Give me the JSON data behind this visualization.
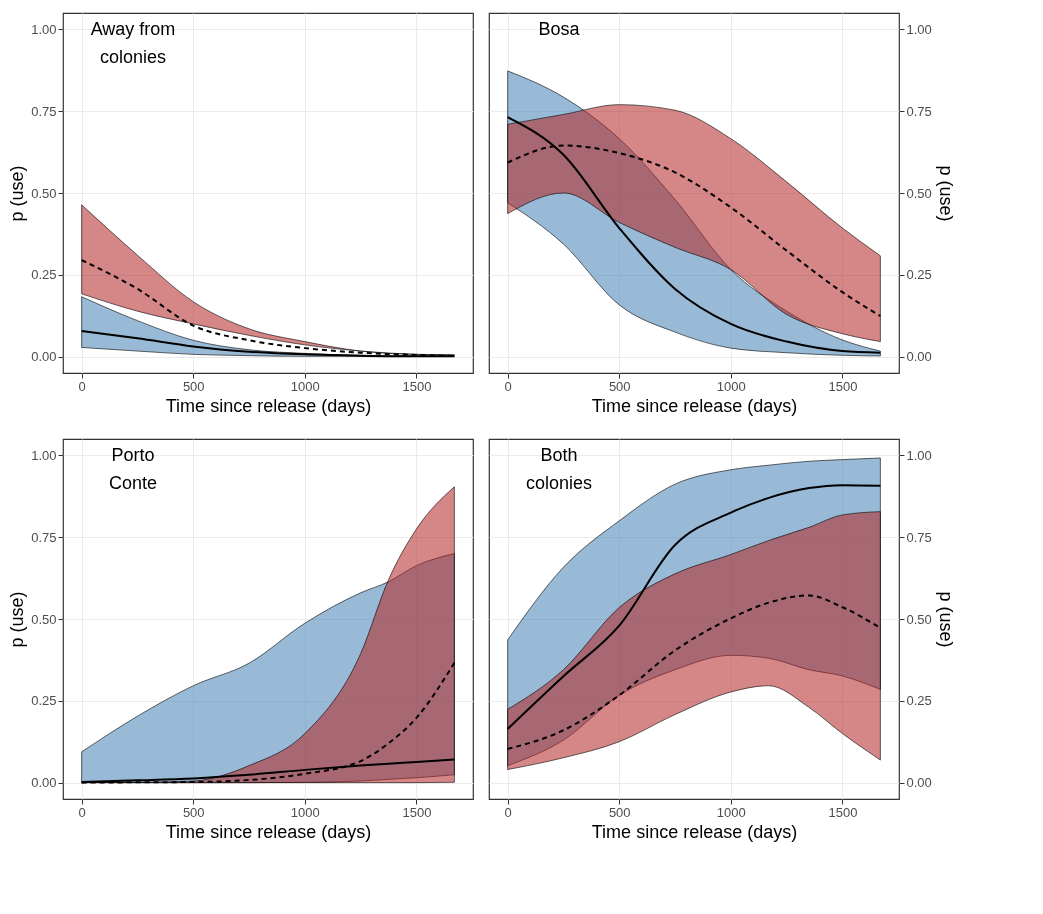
{
  "chart_data": [
    {
      "type": "line",
      "colors": [
        "#4682b4",
        "#b22222"
      ],
      "xlabel": "Time since release (days)",
      "ylabel": "p (use)",
      "annotations": [
        "Away from\ncolonies"
      ],
      "x": [
        0,
        250,
        500,
        750,
        1000,
        1250,
        1500,
        1670
      ],
      "xlim": [
        -83.5,
        1753.5
      ],
      "ylim": [
        -0.05,
        1.05
      ],
      "xticks": [
        0,
        500,
        1000,
        1500
      ],
      "yticks": [
        {
          "value": 0,
          "label": "0.00"
        },
        {
          "value": 0.25,
          "label": "0.25"
        },
        {
          "value": 0.5,
          "label": "0.50"
        },
        {
          "value": 0.75,
          "label": "0.75"
        },
        {
          "value": 1,
          "label": "1.00"
        }
      ],
      "grid": true,
      "marker": "none",
      "series": [
        {
          "color": "#000000",
          "line_style": "solid",
          "values": [
            0.078,
            0.056,
            0.031,
            0.015,
            0.007,
            0.003,
            0.001,
            0.001
          ],
          "lower": [
            0.028,
            0.017,
            0.007,
            0.003,
            0.001,
            0.001,
            0.001,
            0.001
          ],
          "upper": [
            0.183,
            0.11,
            0.05,
            0.021,
            0.01,
            0.004,
            0.002,
            0.002
          ]
        },
        {
          "color": "#000000",
          "line_style": "dashed",
          "values": [
            0.295,
            0.207,
            0.095,
            0.05,
            0.026,
            0.012,
            0.005,
            0.002
          ],
          "lower": [
            0.192,
            0.139,
            0.1,
            0.065,
            0.036,
            0.017,
            0.007,
            0.004
          ],
          "upper": [
            0.464,
            0.31,
            0.168,
            0.085,
            0.046,
            0.017,
            0.007,
            0.006
          ]
        }
      ]
    },
    {
      "type": "line",
      "colors": [
        "#4682b4",
        "#b22222"
      ],
      "xlabel": "Time since release (days)",
      "ylabel": "p (use)",
      "annotations": [
        "Bosa"
      ],
      "x": [
        0,
        250,
        500,
        750,
        1000,
        1250,
        1500,
        1670
      ],
      "xlim": [
        -83.5,
        1753.5
      ],
      "ylim": [
        -0.05,
        1.05
      ],
      "xticks": [
        0,
        500,
        1000,
        1500
      ],
      "yticks": [
        {
          "value": 0,
          "label": "0.00"
        },
        {
          "value": 0.25,
          "label": "0.25"
        },
        {
          "value": 0.5,
          "label": "0.50"
        },
        {
          "value": 0.75,
          "label": "0.75"
        },
        {
          "value": 1,
          "label": "1.00"
        }
      ],
      "grid": true,
      "marker": "none",
      "series": [
        {
          "color": "#000000",
          "line_style": "solid",
          "values": [
            0.732,
            0.617,
            0.393,
            0.207,
            0.1,
            0.046,
            0.017,
            0.012
          ],
          "lower": [
            0.47,
            0.344,
            0.158,
            0.075,
            0.026,
            0.012,
            0.004,
            0.002
          ],
          "upper": [
            0.873,
            0.793,
            0.666,
            0.48,
            0.266,
            0.139,
            0.051,
            0.017
          ]
        },
        {
          "color": "#000000",
          "line_style": "dashed",
          "values": [
            0.593,
            0.645,
            0.622,
            0.563,
            0.456,
            0.324,
            0.197,
            0.124
          ],
          "lower": [
            0.437,
            0.5,
            0.41,
            0.334,
            0.266,
            0.129,
            0.07,
            0.046
          ],
          "upper": [
            0.71,
            0.74,
            0.77,
            0.753,
            0.666,
            0.534,
            0.393,
            0.308
          ]
        }
      ]
    },
    {
      "type": "line",
      "colors": [
        "#4682b4",
        "#b22222"
      ],
      "xlabel": "Time since release (days)",
      "ylabel": "p (use)",
      "annotations": [
        "Porto\nConte"
      ],
      "x": [
        0,
        250,
        500,
        750,
        1000,
        1250,
        1375,
        1500,
        1670
      ],
      "xlim": [
        -83.5,
        1753.5
      ],
      "ylim": [
        -0.05,
        1.05
      ],
      "xticks": [
        0,
        500,
        1000,
        1500
      ],
      "yticks": [
        {
          "value": 0,
          "label": "0.00"
        },
        {
          "value": 0.25,
          "label": "0.25"
        },
        {
          "value": 0.5,
          "label": "0.50"
        },
        {
          "value": 0.75,
          "label": "0.75"
        },
        {
          "value": 1,
          "label": "1.00"
        }
      ],
      "grid": true,
      "marker": "none",
      "series": [
        {
          "color": "#000000",
          "line_style": "solid",
          "values": [
            0.002,
            0.007,
            0.013,
            0.024,
            0.039,
            0.052,
            0.058,
            0.063,
            0.071
          ],
          "lower": [
            0,
            0,
            0,
            0,
            0.001,
            0.005,
            0.01,
            0.015,
            0.024
          ],
          "upper": [
            0.094,
            0.203,
            0.296,
            0.365,
            0.487,
            0.58,
            0.614,
            0.663,
            0.7
          ]
        },
        {
          "color": "#000000",
          "line_style": "dashed",
          "values": [
            0,
            0.001,
            0.002,
            0.008,
            0.027,
            0.066,
            0.12,
            0.198,
            0.366
          ],
          "lower": [
            0,
            0,
            0,
            0,
            0,
            0,
            0,
            0,
            0.001
          ],
          "upper": [
            0.001,
            0.001,
            0.005,
            0.052,
            0.15,
            0.394,
            0.62,
            0.775,
            0.904
          ]
        }
      ]
    },
    {
      "type": "line",
      "colors": [
        "#4682b4",
        "#b22222"
      ],
      "xlabel": "Time since release (days)",
      "ylabel": "p (use)",
      "annotations": [
        "Both\ncolonies"
      ],
      "x": [
        0,
        250,
        500,
        750,
        1000,
        1170,
        1350,
        1500,
        1670
      ],
      "xlim": [
        -83.5,
        1753.5
      ],
      "ylim": [
        -0.05,
        1.05
      ],
      "xticks": [
        0,
        500,
        1000,
        1500
      ],
      "yticks": [
        {
          "value": 0,
          "label": "0.00"
        },
        {
          "value": 0.25,
          "label": "0.25"
        },
        {
          "value": 0.5,
          "label": "0.50"
        },
        {
          "value": 0.75,
          "label": "0.75"
        },
        {
          "value": 1,
          "label": "1.00"
        }
      ],
      "grid": true,
      "marker": "none",
      "series": [
        {
          "color": "#000000",
          "line_style": "solid",
          "values": [
            0.164,
            0.325,
            0.48,
            0.726,
            0.825,
            0.87,
            0.9,
            0.909,
            0.907
          ],
          "lower": [
            0.052,
            0.13,
            0.267,
            0.345,
            0.389,
            0.38,
            0.345,
            0.326,
            0.285
          ],
          "upper": [
            0.436,
            0.658,
            0.8,
            0.912,
            0.956,
            0.97,
            0.982,
            0.987,
            0.992
          ]
        },
        {
          "color": "#000000",
          "line_style": "dashed",
          "values": [
            0.103,
            0.16,
            0.267,
            0.404,
            0.502,
            0.55,
            0.572,
            0.536,
            0.473
          ],
          "lower": [
            0.04,
            0.076,
            0.125,
            0.208,
            0.277,
            0.296,
            0.23,
            0.15,
            0.069
          ],
          "upper": [
            0.224,
            0.345,
            0.535,
            0.638,
            0.697,
            0.74,
            0.78,
            0.818,
            0.828
          ]
        }
      ]
    }
  ]
}
